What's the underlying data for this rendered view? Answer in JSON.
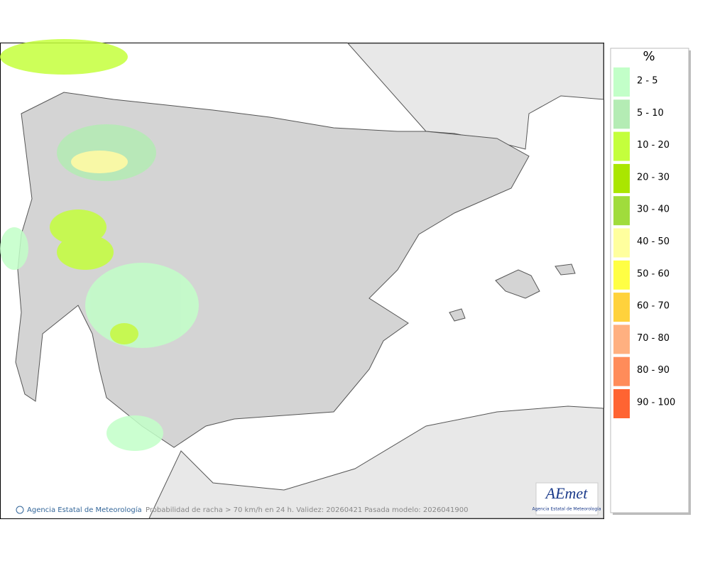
{
  "map": {
    "footer": {
      "credit": "Agencia Estatal de Meteorología",
      "caption": "Probabilidad de racha > 70 km/h en 24 h. Validez: 20260421 Pasada modelo: 2026041900"
    },
    "logo": {
      "name": "AEmet",
      "subtitle": "Agencia Estatal de Meteorología"
    },
    "legend": {
      "title": "%",
      "items": [
        {
          "label": "2 - 5",
          "color": "#c2ffc8"
        },
        {
          "label": "5 - 10",
          "color": "#b4ecb4"
        },
        {
          "label": "10 - 20",
          "color": "#c4ff3c"
        },
        {
          "label": "20 - 30",
          "color": "#aae600"
        },
        {
          "label": "30 - 40",
          "color": "#a0dc3c"
        },
        {
          "label": "40 - 50",
          "color": "#ffff9e"
        },
        {
          "label": "50 - 60",
          "color": "#ffff44"
        },
        {
          "label": "60 - 70",
          "color": "#ffd23c"
        },
        {
          "label": "70 - 80",
          "color": "#ffb080"
        },
        {
          "label": "80 - 90",
          "color": "#ff8c5a"
        },
        {
          "label": "90 - 100",
          "color": "#ff6432"
        }
      ]
    }
  }
}
